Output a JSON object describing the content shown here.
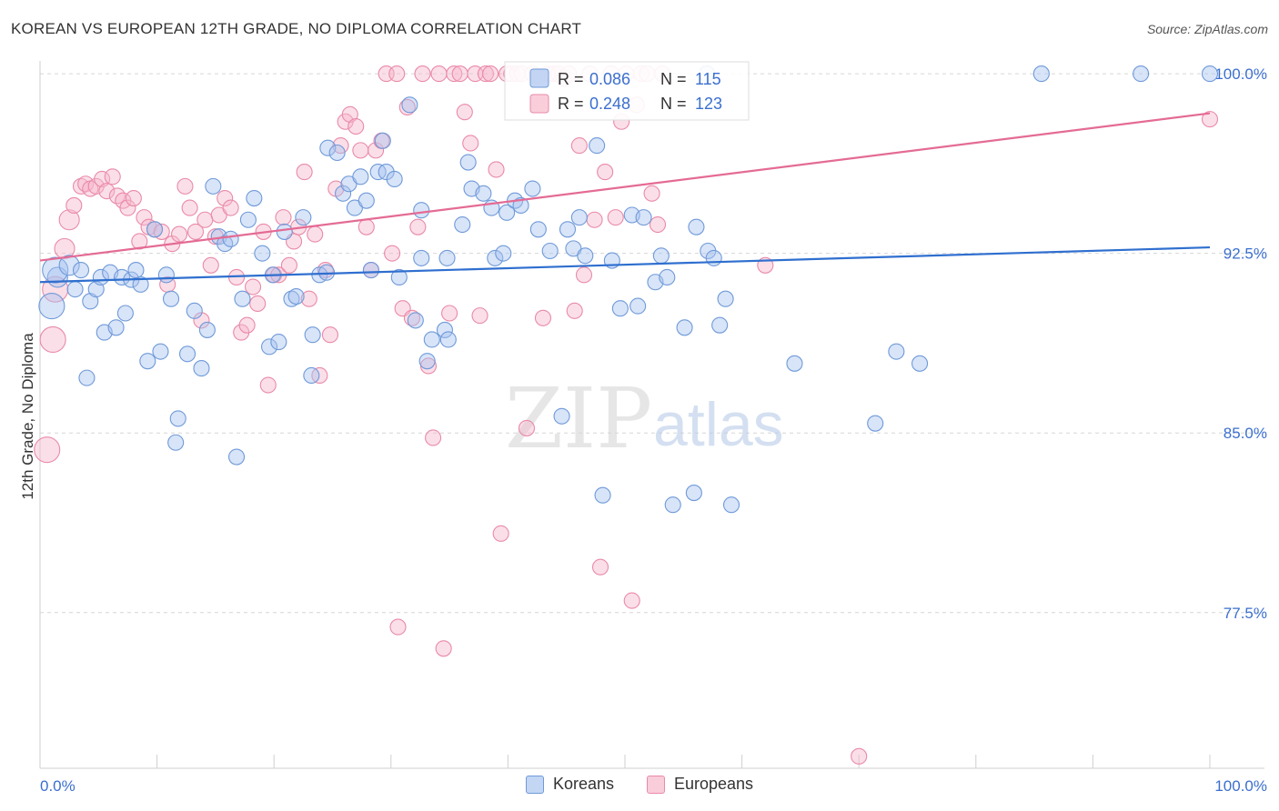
{
  "title": "KOREAN VS EUROPEAN 12TH GRADE, NO DIPLOMA CORRELATION CHART",
  "source": "Source: ZipAtlas.com",
  "watermark": {
    "zip": "ZIP",
    "atlas": "atlas"
  },
  "colors": {
    "korean_fill": "#a9c4ef",
    "korean_stroke": "#6f9ad9",
    "korean_line": "#2f6fcf",
    "european_fill": "#f6b9cb",
    "european_stroke": "#e98aa8",
    "european_line": "#e46b94",
    "value_text": "#3b6fcf"
  },
  "legend_top": [
    {
      "r_label": "R =",
      "r_value": "0.086",
      "n_label": "N =",
      "n_value": "115",
      "series": "korean"
    },
    {
      "r_label": "R =",
      "r_value": "0.248",
      "n_label": "N =",
      "n_value": "123",
      "series": "european"
    }
  ],
  "chart_data": {
    "type": "scatter",
    "title": "KOREAN VS EUROPEAN 12TH GRADE, NO DIPLOMA CORRELATION CHART",
    "xlabel": "",
    "ylabel": "12th Grade, No Diploma",
    "xlim": [
      0,
      100
    ],
    "ylim": [
      71.0,
      100.8
    ],
    "x_tick_labels": [
      "0.0%",
      "100.0%"
    ],
    "y_tick_values": [
      77.5,
      85.0,
      92.5,
      100.0
    ],
    "y_tick_labels": [
      "77.5%",
      "85.0%",
      "92.5%",
      "100.0%"
    ],
    "grid": "horizontal dashed",
    "legend_position": "top-center",
    "series": [
      {
        "name": "Koreans",
        "trend": {
          "x": [
            0,
            100
          ],
          "y": [
            91.3,
            92.75
          ]
        },
        "points": [
          [
            1.5,
            91.5
          ],
          [
            1.0,
            90.3
          ],
          [
            1.3,
            91.8
          ],
          [
            2.5,
            92.0
          ],
          [
            3.0,
            91.0
          ],
          [
            3.5,
            91.8
          ],
          [
            4.0,
            87.3
          ],
          [
            4.3,
            90.5
          ],
          [
            4.8,
            91.0
          ],
          [
            5.2,
            91.5
          ],
          [
            5.5,
            89.2
          ],
          [
            6.0,
            91.7
          ],
          [
            6.5,
            89.4
          ],
          [
            7.0,
            91.5
          ],
          [
            7.3,
            90.0
          ],
          [
            7.8,
            91.4
          ],
          [
            8.2,
            91.8
          ],
          [
            8.6,
            91.2
          ],
          [
            9.2,
            88.0
          ],
          [
            9.8,
            93.5
          ],
          [
            10.3,
            88.4
          ],
          [
            10.8,
            91.6
          ],
          [
            11.2,
            90.6
          ],
          [
            11.8,
            85.6
          ],
          [
            11.6,
            84.6
          ],
          [
            12.6,
            88.3
          ],
          [
            13.2,
            90.1
          ],
          [
            13.8,
            87.7
          ],
          [
            14.3,
            89.3
          ],
          [
            14.8,
            95.3
          ],
          [
            15.3,
            93.2
          ],
          [
            15.8,
            92.9
          ],
          [
            16.3,
            93.1
          ],
          [
            16.8,
            84.0
          ],
          [
            17.3,
            90.6
          ],
          [
            17.8,
            93.9
          ],
          [
            18.3,
            94.8
          ],
          [
            19.0,
            92.5
          ],
          [
            19.6,
            88.6
          ],
          [
            19.9,
            91.6
          ],
          [
            20.4,
            88.8
          ],
          [
            20.9,
            93.4
          ],
          [
            21.5,
            90.6
          ],
          [
            21.9,
            90.7
          ],
          [
            22.5,
            94.0
          ],
          [
            23.3,
            89.1
          ],
          [
            23.9,
            91.6
          ],
          [
            23.2,
            87.4
          ],
          [
            24.5,
            91.7
          ],
          [
            24.6,
            96.9
          ],
          [
            25.4,
            96.7
          ],
          [
            25.9,
            95.0
          ],
          [
            26.4,
            95.4
          ],
          [
            26.9,
            94.4
          ],
          [
            27.4,
            95.7
          ],
          [
            27.9,
            94.7
          ],
          [
            28.3,
            91.8
          ],
          [
            28.9,
            95.9
          ],
          [
            29.3,
            97.2
          ],
          [
            29.6,
            95.9
          ],
          [
            30.3,
            95.6
          ],
          [
            30.7,
            91.5
          ],
          [
            31.6,
            98.7
          ],
          [
            32.1,
            89.7
          ],
          [
            32.6,
            94.3
          ],
          [
            33.1,
            88.0
          ],
          [
            32.6,
            92.3
          ],
          [
            33.5,
            88.9
          ],
          [
            34.6,
            89.3
          ],
          [
            34.9,
            88.9
          ],
          [
            34.8,
            92.3
          ],
          [
            36.1,
            93.7
          ],
          [
            36.6,
            96.3
          ],
          [
            36.9,
            95.2
          ],
          [
            37.9,
            95.0
          ],
          [
            38.6,
            94.4
          ],
          [
            38.9,
            92.3
          ],
          [
            39.6,
            92.5
          ],
          [
            39.9,
            94.2
          ],
          [
            40.6,
            94.7
          ],
          [
            41.1,
            94.5
          ],
          [
            42.1,
            95.2
          ],
          [
            42.6,
            93.5
          ],
          [
            43.6,
            92.6
          ],
          [
            44.6,
            85.7
          ],
          [
            45.1,
            93.5
          ],
          [
            45.6,
            92.7
          ],
          [
            46.1,
            94.0
          ],
          [
            46.6,
            92.4
          ],
          [
            47.6,
            97.0
          ],
          [
            48.1,
            82.4
          ],
          [
            48.9,
            92.2
          ],
          [
            49.6,
            90.2
          ],
          [
            50.6,
            94.1
          ],
          [
            51.1,
            90.3
          ],
          [
            51.6,
            94.0
          ],
          [
            52.6,
            91.3
          ],
          [
            53.1,
            92.4
          ],
          [
            53.6,
            91.5
          ],
          [
            54.1,
            82.0
          ],
          [
            55.1,
            89.4
          ],
          [
            55.9,
            82.5
          ],
          [
            56.1,
            93.6
          ],
          [
            57.1,
            92.6
          ],
          [
            57.6,
            92.3
          ],
          [
            58.1,
            89.5
          ],
          [
            58.6,
            90.6
          ],
          [
            59.1,
            82.0
          ],
          [
            57.0,
            100.0
          ],
          [
            64.5,
            87.9
          ],
          [
            71.4,
            85.4
          ],
          [
            73.2,
            88.4
          ],
          [
            75.2,
            87.9
          ],
          [
            85.6,
            100.0
          ],
          [
            94.1,
            100.0
          ],
          [
            100.0,
            100.0
          ]
        ]
      },
      {
        "name": "Europeans",
        "trend": {
          "x": [
            0,
            100
          ],
          "y": [
            92.2,
            98.35
          ]
        },
        "points": [
          [
            0.6,
            84.3
          ],
          [
            1.1,
            88.9
          ],
          [
            1.3,
            91.0
          ],
          [
            2.1,
            92.7
          ],
          [
            2.5,
            93.9
          ],
          [
            2.9,
            94.5
          ],
          [
            3.5,
            95.3
          ],
          [
            3.9,
            95.4
          ],
          [
            4.3,
            95.2
          ],
          [
            4.8,
            95.3
          ],
          [
            5.3,
            95.6
          ],
          [
            5.7,
            95.1
          ],
          [
            6.2,
            95.7
          ],
          [
            6.6,
            94.9
          ],
          [
            7.1,
            94.7
          ],
          [
            7.5,
            94.4
          ],
          [
            8.0,
            94.8
          ],
          [
            8.5,
            93.0
          ],
          [
            8.9,
            94.0
          ],
          [
            9.3,
            93.6
          ],
          [
            9.8,
            93.5
          ],
          [
            10.4,
            93.4
          ],
          [
            10.9,
            91.2
          ],
          [
            11.3,
            92.9
          ],
          [
            11.9,
            93.3
          ],
          [
            12.4,
            95.3
          ],
          [
            12.8,
            94.4
          ],
          [
            13.3,
            93.4
          ],
          [
            13.8,
            89.7
          ],
          [
            14.1,
            93.9
          ],
          [
            14.6,
            92.0
          ],
          [
            15.0,
            93.2
          ],
          [
            15.3,
            94.1
          ],
          [
            15.8,
            94.8
          ],
          [
            16.3,
            94.4
          ],
          [
            16.8,
            91.5
          ],
          [
            17.2,
            89.2
          ],
          [
            17.7,
            89.5
          ],
          [
            18.2,
            91.1
          ],
          [
            18.6,
            90.4
          ],
          [
            19.1,
            93.4
          ],
          [
            19.5,
            87.0
          ],
          [
            20.0,
            91.6
          ],
          [
            20.4,
            91.6
          ],
          [
            20.8,
            94.0
          ],
          [
            21.3,
            92.0
          ],
          [
            21.7,
            93.0
          ],
          [
            22.1,
            93.6
          ],
          [
            22.6,
            95.9
          ],
          [
            23.0,
            90.6
          ],
          [
            23.5,
            93.3
          ],
          [
            23.9,
            87.4
          ],
          [
            24.4,
            91.8
          ],
          [
            24.8,
            89.1
          ],
          [
            25.3,
            95.2
          ],
          [
            25.7,
            97.0
          ],
          [
            26.1,
            98.0
          ],
          [
            26.5,
            98.3
          ],
          [
            27.0,
            97.8
          ],
          [
            27.4,
            96.8
          ],
          [
            27.9,
            93.6
          ],
          [
            28.3,
            91.8
          ],
          [
            28.7,
            96.8
          ],
          [
            29.2,
            97.2
          ],
          [
            29.6,
            100.0
          ],
          [
            30.1,
            92.5
          ],
          [
            30.5,
            100.0
          ],
          [
            31.0,
            90.2
          ],
          [
            31.4,
            98.6
          ],
          [
            31.8,
            89.8
          ],
          [
            32.3,
            93.6
          ],
          [
            32.7,
            100.0
          ],
          [
            33.2,
            87.8
          ],
          [
            33.6,
            84.8
          ],
          [
            34.1,
            100.0
          ],
          [
            34.5,
            76.0
          ],
          [
            35.0,
            90.0
          ],
          [
            35.4,
            100.0
          ],
          [
            35.9,
            100.0
          ],
          [
            36.3,
            98.4
          ],
          [
            36.8,
            97.1
          ],
          [
            37.2,
            100.0
          ],
          [
            37.6,
            89.9
          ],
          [
            38.1,
            100.0
          ],
          [
            38.5,
            100.0
          ],
          [
            39.0,
            96.0
          ],
          [
            39.4,
            80.8
          ],
          [
            39.9,
            100.0
          ],
          [
            40.3,
            100.0
          ],
          [
            40.8,
            100.0
          ],
          [
            41.2,
            100.0
          ],
          [
            41.6,
            85.2
          ],
          [
            42.1,
            100.0
          ],
          [
            42.5,
            99.9
          ],
          [
            43.0,
            89.8
          ],
          [
            43.4,
            100.0
          ],
          [
            43.9,
            100.0
          ],
          [
            44.3,
            100.0
          ],
          [
            44.8,
            99.8
          ],
          [
            45.2,
            100.0
          ],
          [
            45.7,
            90.1
          ],
          [
            46.1,
            97.0
          ],
          [
            46.5,
            91.6
          ],
          [
            47.0,
            100.0
          ],
          [
            47.4,
            93.9
          ],
          [
            47.9,
            79.4
          ],
          [
            48.3,
            95.9
          ],
          [
            48.8,
            100.0
          ],
          [
            49.2,
            94.0
          ],
          [
            49.7,
            98.0
          ],
          [
            50.1,
            100.0
          ],
          [
            50.6,
            78.0
          ],
          [
            51.0,
            98.7
          ],
          [
            51.4,
            100.0
          ],
          [
            51.9,
            100.0
          ],
          [
            52.3,
            95.0
          ],
          [
            52.8,
            93.7
          ],
          [
            53.2,
            100.0
          ],
          [
            62.0,
            92.0
          ],
          [
            70.0,
            71.5
          ],
          [
            100.0,
            98.1
          ],
          [
            30.6,
            76.9
          ]
        ]
      }
    ]
  },
  "bottom_legend": [
    {
      "label": "Koreans",
      "series": "korean"
    },
    {
      "label": "Europeans",
      "series": "european"
    }
  ]
}
